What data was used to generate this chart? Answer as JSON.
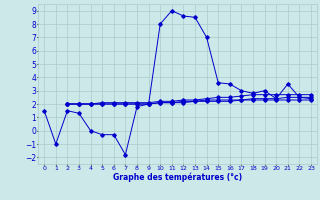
{
  "main_x": [
    0,
    1,
    2,
    3,
    4,
    5,
    6,
    7,
    8,
    9,
    10,
    11,
    12,
    13,
    14,
    15,
    16,
    17,
    18,
    19,
    20,
    21,
    22,
    23
  ],
  "main_y": [
    1.5,
    -1.0,
    1.5,
    1.3,
    0.0,
    -0.3,
    -0.3,
    -1.8,
    1.8,
    2.0,
    8.0,
    9.0,
    8.6,
    8.5,
    7.0,
    3.6,
    3.5,
    3.0,
    2.8,
    3.0,
    2.4,
    3.5,
    2.5,
    2.4
  ],
  "flat1_x": [
    2,
    3,
    4,
    5,
    6,
    7,
    8,
    9,
    10,
    11,
    12,
    13,
    14,
    15,
    16,
    17,
    18,
    19,
    20,
    21,
    22,
    23
  ],
  "flat1_y": [
    2.0,
    2.0,
    2.0,
    2.0,
    2.0,
    2.0,
    2.0,
    2.0,
    2.1,
    2.1,
    2.1,
    2.2,
    2.2,
    2.2,
    2.2,
    2.3,
    2.3,
    2.3,
    2.3,
    2.3,
    2.3,
    2.3
  ],
  "flat2_x": [
    2,
    3,
    4,
    5,
    6,
    7,
    8,
    9,
    10,
    11,
    12,
    13,
    14,
    15,
    16,
    17,
    18,
    19,
    20,
    21,
    22,
    23
  ],
  "flat2_y": [
    2.0,
    2.0,
    2.0,
    2.0,
    2.0,
    2.0,
    2.0,
    2.0,
    2.1,
    2.1,
    2.2,
    2.2,
    2.3,
    2.3,
    2.3,
    2.3,
    2.4,
    2.4,
    2.4,
    2.5,
    2.5,
    2.5
  ],
  "flat3_x": [
    2,
    3,
    4,
    5,
    6,
    7,
    8,
    9,
    10,
    11,
    12,
    13,
    14,
    15,
    16,
    17,
    18,
    19,
    20,
    21,
    22,
    23
  ],
  "flat3_y": [
    2.0,
    2.0,
    2.0,
    2.1,
    2.1,
    2.1,
    2.1,
    2.1,
    2.2,
    2.2,
    2.3,
    2.3,
    2.4,
    2.5,
    2.5,
    2.6,
    2.7,
    2.7,
    2.7,
    2.7,
    2.7,
    2.7
  ],
  "line_color": "#0000cc",
  "bg_color": "#cce8e8",
  "grid_color": "#aacccc",
  "xlabel": "Graphe des températures (°c)",
  "xlim": [
    -0.5,
    23.5
  ],
  "ylim": [
    -2.5,
    9.5
  ],
  "yticks": [
    -2,
    -1,
    0,
    1,
    2,
    3,
    4,
    5,
    6,
    7,
    8,
    9
  ],
  "xticks": [
    0,
    1,
    2,
    3,
    4,
    5,
    6,
    7,
    8,
    9,
    10,
    11,
    12,
    13,
    14,
    15,
    16,
    17,
    18,
    19,
    20,
    21,
    22,
    23
  ]
}
